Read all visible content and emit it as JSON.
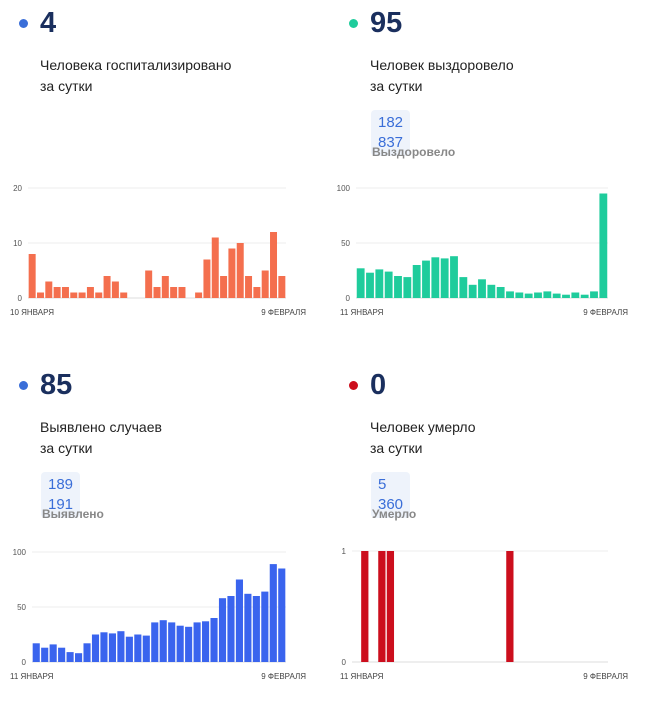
{
  "panels": [
    {
      "id": "hospitalized",
      "value": "4",
      "line1": "Человека госпитализировано",
      "line2": "за сутки",
      "dot_color": "#3a6ed8"
    },
    {
      "id": "recovered",
      "value": "95",
      "line1": "Человек выздоровело",
      "line2": "за сутки",
      "total": "182 837",
      "total_label": "Выздоровело",
      "dot_color": "#1fcc9c"
    },
    {
      "id": "cases",
      "value": "85",
      "line1": "Выявлено случаев",
      "line2": "за сутки",
      "total": "189 191",
      "total_label": "Выявлено",
      "dot_color": "#3a6ed8"
    },
    {
      "id": "deaths",
      "value": "0",
      "line1": "Человек умерло",
      "line2": "за сутки",
      "total": "5 360",
      "total_label": "Умерло",
      "dot_color": "#cc0e1d"
    }
  ],
  "chart_data": [
    {
      "type": "bar",
      "color": "#f46f4e",
      "ylim": [
        0,
        20
      ],
      "yticks": [
        0,
        10,
        20
      ],
      "x_start_label": "10 ЯНВАРЯ",
      "x_end_label": "9 ФЕВРАЛЯ",
      "values": [
        8,
        1,
        3,
        2,
        2,
        1,
        1,
        2,
        1,
        4,
        3,
        1,
        null,
        null,
        5,
        2,
        4,
        2,
        2,
        null,
        1,
        7,
        11,
        4,
        9,
        10,
        4,
        2,
        5,
        12,
        4
      ]
    },
    {
      "type": "bar",
      "color": "#1fcc9c",
      "ylim": [
        0,
        100
      ],
      "yticks": [
        0,
        50,
        100
      ],
      "x_start_label": "11 ЯНВАРЯ",
      "x_end_label": "9 ФЕВРАЛЯ",
      "values": [
        27,
        23,
        26,
        24,
        20,
        19,
        30,
        34,
        37,
        36,
        38,
        19,
        12,
        17,
        12,
        10,
        6,
        5,
        4,
        5,
        6,
        4,
        3,
        5,
        3,
        6,
        95
      ]
    },
    {
      "type": "bar",
      "color": "#3a64ee",
      "ylim": [
        0,
        100
      ],
      "yticks": [
        0,
        50,
        100
      ],
      "x_start_label": "11 ЯНВАРЯ",
      "x_end_label": "9 ФЕВРАЛЯ",
      "values": [
        17,
        13,
        16,
        13,
        9,
        8,
        17,
        25,
        27,
        26,
        28,
        23,
        25,
        24,
        36,
        38,
        36,
        33,
        32,
        36,
        37,
        40,
        58,
        60,
        75,
        62,
        60,
        64,
        89,
        85
      ]
    },
    {
      "type": "bar",
      "color": "#cc0e1d",
      "ylim": [
        0,
        1
      ],
      "yticks": [
        0,
        1
      ],
      "x_start_label": "11 ЯНВАРЯ",
      "x_end_label": "9 ФЕВРАЛЯ",
      "values": [
        0,
        1,
        0,
        1,
        1,
        0,
        0,
        0,
        0,
        0,
        0,
        0,
        0,
        0,
        0,
        0,
        0,
        0,
        1,
        0,
        0,
        0,
        0,
        0,
        0,
        0,
        0,
        0,
        0,
        0
      ]
    }
  ]
}
